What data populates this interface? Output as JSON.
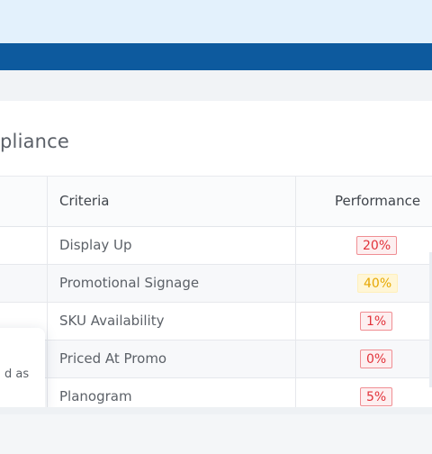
{
  "card": {
    "title": "pliance"
  },
  "table": {
    "headers": {
      "criteria": "Criteria",
      "performance": "Performance"
    },
    "rows": [
      {
        "criteria": "Display Up",
        "performance": "20%",
        "status": "red"
      },
      {
        "criteria": "Promotional Signage",
        "performance": "40%",
        "status": "yellow"
      },
      {
        "criteria": "SKU Availability",
        "performance": "1%",
        "status": "red"
      },
      {
        "criteria": "Priced At Promo",
        "performance": "0%",
        "status": "red"
      },
      {
        "criteria": "Planogram",
        "performance": "5%",
        "status": "red"
      }
    ]
  },
  "tooltip": {
    "text": "d as"
  },
  "colors": {
    "brand_bar": "#0d5a9e",
    "top_band": "#e3f1fc",
    "red": "#e2323a",
    "yellow": "#e6a700"
  }
}
